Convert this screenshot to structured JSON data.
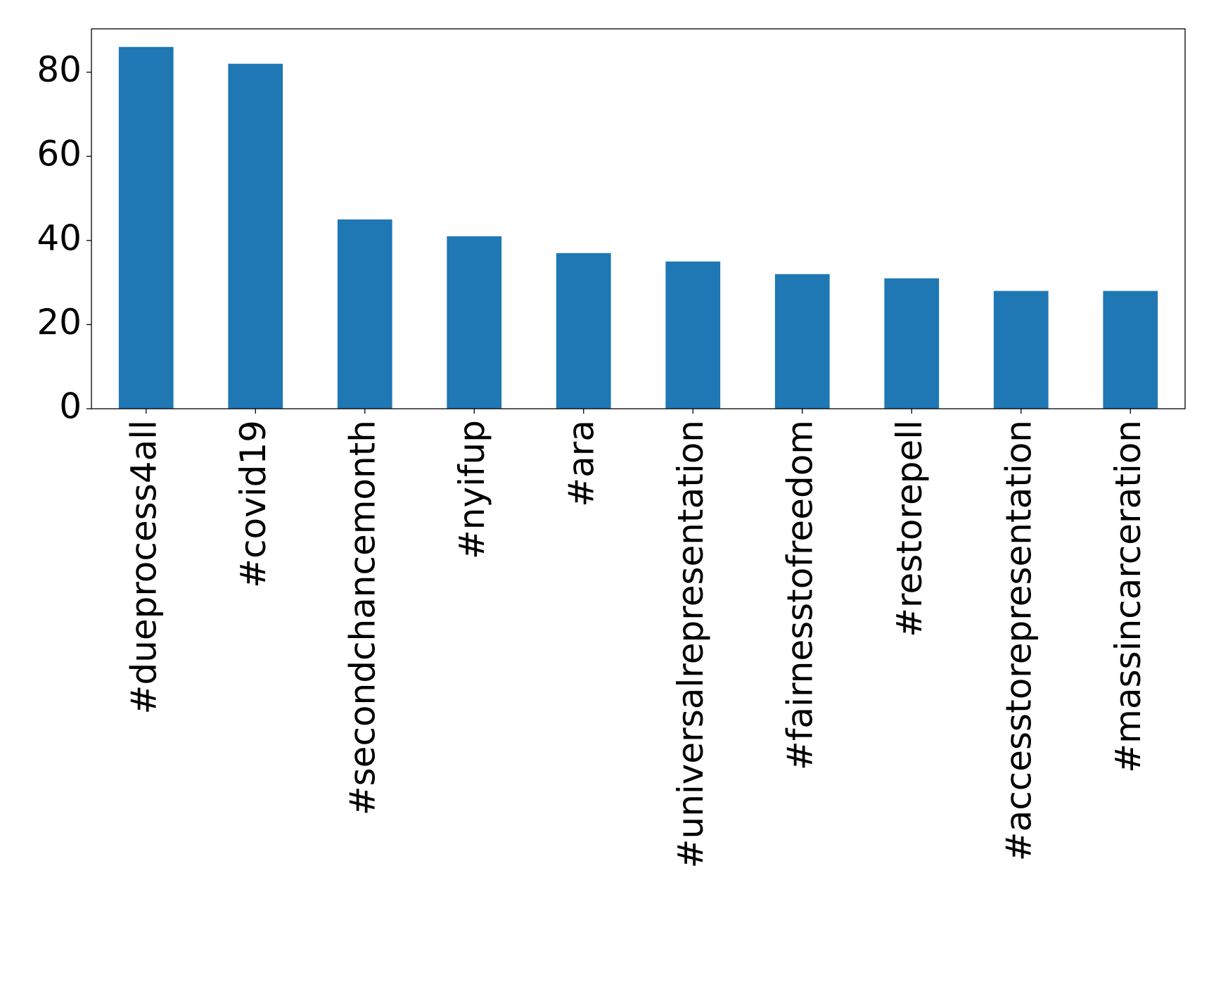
{
  "chart_data": {
    "type": "bar",
    "title": "",
    "xlabel": "",
    "ylabel": "",
    "categories": [
      "#dueprocess4all",
      "#covid19",
      "#secondchancemonth",
      "#nyifup",
      "#ara",
      "#universalrepresentation",
      "#fairnesstofreedom",
      "#restorepell",
      "#accesstorepresentation",
      "#massincarceration"
    ],
    "values": [
      86,
      82,
      45,
      41,
      37,
      35,
      32,
      31,
      28,
      28
    ],
    "ylim": [
      0,
      90.3
    ],
    "yticks": [
      0,
      20,
      40,
      60,
      80
    ],
    "grid": false,
    "legend": "none",
    "bar_color": "#1f77b4"
  }
}
